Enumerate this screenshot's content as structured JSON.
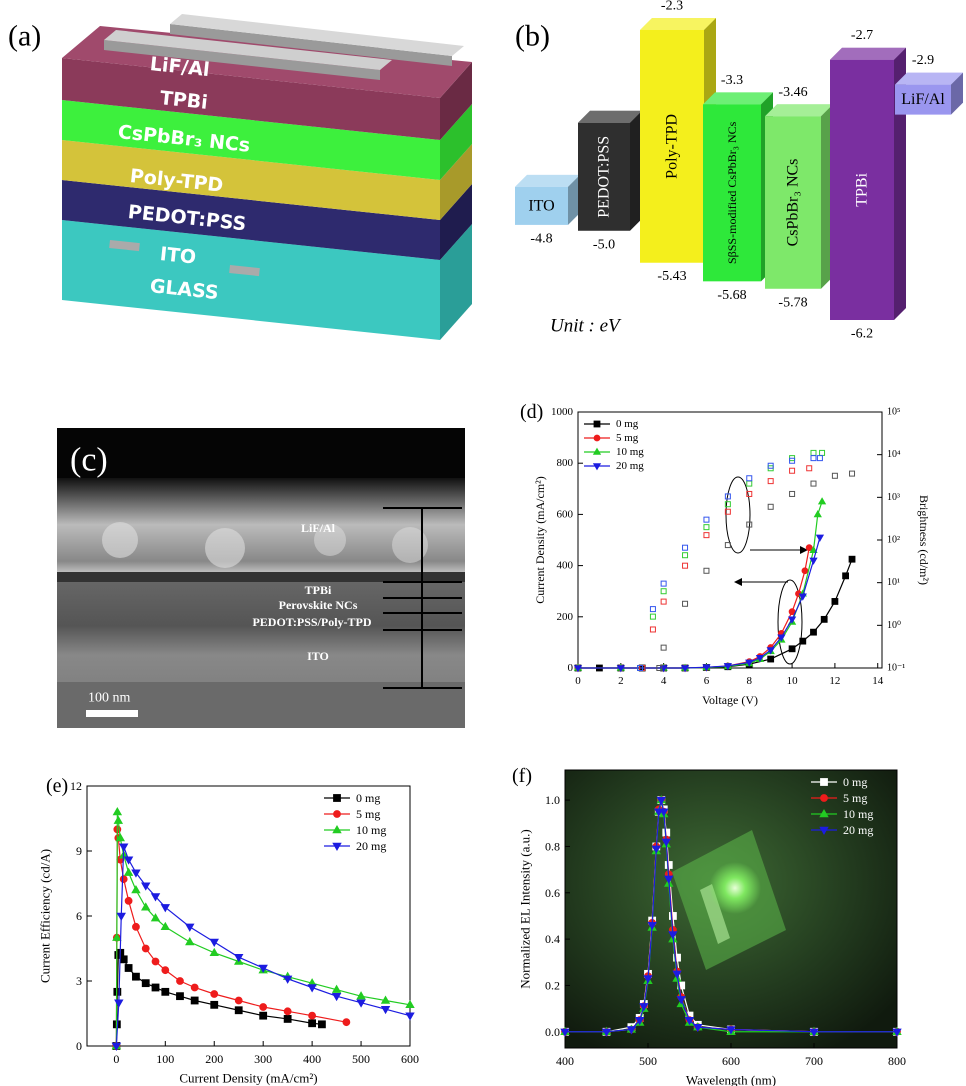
{
  "figure": {
    "panel_labels": [
      "(a)",
      "(b)",
      "(c)",
      "(d)",
      "(e)",
      "(f)"
    ]
  },
  "device_stack": {
    "layers": [
      "LiF/Al",
      "TPBi",
      "CsPbBr₃ NCs",
      "Poly-TPD",
      "PEDOT:PSS",
      "ITO",
      "GLASS"
    ]
  },
  "sem_image": {
    "labels": [
      "LiF/Al",
      "TPBi",
      "Perovskite NCs",
      "PEDOT:PSS/Poly-TPD",
      "ITO"
    ],
    "scale_bar": "100 nm"
  },
  "chart_data": [
    {
      "type": "energy",
      "unit": "Unit : eV",
      "categories": [
        "ITO",
        "PEDOT:PSS",
        "Poly-TPD",
        "SβSS-modified CsPbBr₃ NCs",
        "CsPbBr₃ NCs",
        "TPBi",
        "LiF/Al"
      ],
      "lumo": [
        null,
        null,
        -2.3,
        -3.3,
        -3.46,
        -2.7,
        -2.9
      ],
      "homo": [
        -4.8,
        {
          "value": -5,
          "label": "-5.0"
        },
        -5.43,
        -5.68,
        -5.78,
        -6.2,
        null
      ],
      "colors": [
        "#9fd0ee",
        "#2f2f2f",
        "#f4ef1c",
        "#2ee83a",
        "#7ee86a",
        "#7a2fa0",
        "#9a96ef"
      ],
      "label_colors": [
        "#000000",
        "#ffffff",
        "#000000",
        "#000000",
        "#000000",
        "#ffffff",
        "#000000"
      ]
    },
    {
      "type": "line",
      "xlabel": "Voltage (V)",
      "ylabel": "Current Density (mA/cm²)",
      "y2label": "Brightness (cd/m²)",
      "xlim": [
        0,
        14.2
      ],
      "xticks": [
        0,
        2,
        4,
        6,
        8,
        10,
        12,
        14
      ],
      "ylim": [
        0,
        1000
      ],
      "yticks": [
        0,
        200,
        400,
        600,
        800,
        1000
      ],
      "y2lim": [
        0.1,
        100000
      ],
      "y2log": true,
      "y2ticks": [
        {
          "value": 0.1,
          "label": "10⁻¹"
        },
        {
          "value": 1,
          "label": "10⁰"
        },
        {
          "value": 10,
          "label": "10¹"
        },
        {
          "value": 100,
          "label": "10²"
        },
        {
          "value": 1000,
          "label": "10³"
        },
        {
          "value": 10000,
          "label": "10⁴"
        },
        {
          "value": 100000,
          "label": "10⁵"
        }
      ],
      "legend": "upper left",
      "series": [
        {
          "name": "0 mg",
          "color": "#000000",
          "marker": "square",
          "x": [
            0,
            1,
            2,
            3,
            4,
            5,
            6,
            7,
            8,
            9,
            10,
            10.5,
            11,
            11.5,
            12,
            12.5,
            12.8
          ],
          "values": [
            0,
            0,
            0,
            0,
            0,
            0,
            2,
            5,
            15,
            35,
            75,
            105,
            140,
            190,
            260,
            360,
            425
          ]
        },
        {
          "name": "5 mg",
          "color": "#ee1c1c",
          "marker": "circle",
          "x": [
            0,
            2,
            4,
            5,
            6,
            7,
            8,
            8.5,
            9,
            9.5,
            10,
            10.3,
            10.6,
            10.8
          ],
          "values": [
            0,
            0,
            0,
            0,
            2,
            8,
            25,
            45,
            80,
            135,
            220,
            290,
            380,
            470
          ]
        },
        {
          "name": "10 mg",
          "color": "#22cc22",
          "marker": "triangle",
          "x": [
            0,
            2,
            4,
            5,
            6,
            7,
            8,
            8.5,
            9,
            9.5,
            10,
            10.5,
            11,
            11.2,
            11.4
          ],
          "values": [
            0,
            0,
            0,
            0,
            2,
            6,
            18,
            35,
            65,
            110,
            180,
            290,
            460,
            600,
            650
          ]
        },
        {
          "name": "20 mg",
          "color": "#1c1ce0",
          "marker": "triangle-down",
          "x": [
            0,
            2,
            4,
            5,
            6,
            7,
            8,
            8.5,
            9,
            9.5,
            10,
            10.5,
            11,
            11.3
          ],
          "values": [
            0,
            0,
            0,
            0,
            3,
            8,
            22,
            40,
            70,
            120,
            190,
            280,
            420,
            510
          ]
        },
        {
          "color": "#555555",
          "marker": "square",
          "open": true,
          "axis": "y2",
          "x": [
            3.8,
            4,
            5,
            6,
            7,
            8,
            9,
            10,
            11,
            12,
            12.8
          ],
          "values": [
            0.1,
            0.3,
            3.2,
            19,
            76,
            230,
            600,
            1200,
            2100,
            3200,
            3600
          ]
        },
        {
          "color": "#ee3333",
          "marker": "square",
          "open": true,
          "axis": "y2",
          "x": [
            3,
            3.5,
            4,
            5,
            6,
            7,
            8,
            9,
            10,
            10.8
          ],
          "values": [
            0.1,
            0.8,
            3.6,
            25,
            130,
            460,
            1200,
            2400,
            4200,
            4800
          ]
        },
        {
          "color": "#33cc33",
          "marker": "square",
          "open": true,
          "axis": "y2",
          "x": [
            2.9,
            3.5,
            4,
            5,
            6,
            7,
            8,
            9,
            10,
            11,
            11.4
          ],
          "values": [
            0.1,
            1.6,
            6.3,
            44,
            200,
            690,
            2100,
            4800,
            8300,
            11000,
            11000
          ]
        },
        {
          "color": "#3355ee",
          "marker": "square",
          "open": true,
          "axis": "y2",
          "x": [
            2.9,
            3.5,
            4,
            5,
            6,
            7,
            8,
            9,
            10,
            11,
            11.3
          ],
          "values": [
            0.1,
            2.4,
            9.5,
            66,
            300,
            1050,
            2800,
            5500,
            7200,
            8300,
            8300
          ]
        }
      ]
    },
    {
      "type": "line",
      "xlabel": "Current Density (mA/cm²)",
      "ylabel": "Current Efficiency (cd/A)",
      "xlim": [
        -60,
        600
      ],
      "xticks": [
        0,
        100,
        200,
        300,
        400,
        500,
        600
      ],
      "ylim": [
        0,
        12
      ],
      "yticks": [
        0,
        3,
        6,
        9,
        12
      ],
      "legend": "upper right",
      "series": [
        {
          "name": "0 mg",
          "color": "#000000",
          "marker": "square",
          "x": [
            0,
            1,
            2,
            4,
            8,
            15,
            25,
            40,
            60,
            80,
            100,
            130,
            160,
            200,
            250,
            300,
            350,
            400,
            420
          ],
          "values": [
            0,
            1,
            2.5,
            4.2,
            4.3,
            4.0,
            3.6,
            3.2,
            2.9,
            2.7,
            2.5,
            2.3,
            2.1,
            1.9,
            1.65,
            1.4,
            1.25,
            1.05,
            1.0
          ]
        },
        {
          "name": "5 mg",
          "color": "#ee1c1c",
          "marker": "circle",
          "x": [
            0,
            1,
            2,
            4,
            8,
            15,
            25,
            40,
            60,
            80,
            100,
            130,
            160,
            200,
            250,
            300,
            350,
            400,
            470
          ],
          "values": [
            0,
            5,
            10,
            9.6,
            8.6,
            7.7,
            6.7,
            5.5,
            4.5,
            3.9,
            3.5,
            3.0,
            2.7,
            2.4,
            2.1,
            1.8,
            1.6,
            1.4,
            1.1
          ]
        },
        {
          "name": "10 mg",
          "color": "#22cc22",
          "marker": "triangle",
          "x": [
            0,
            1,
            2,
            4,
            8,
            15,
            25,
            40,
            60,
            80,
            100,
            150,
            200,
            250,
            300,
            350,
            400,
            450,
            500,
            550,
            600
          ],
          "values": [
            0,
            5,
            10.8,
            10.4,
            9.6,
            8.8,
            8.0,
            7.2,
            6.4,
            5.9,
            5.5,
            4.8,
            4.3,
            3.9,
            3.5,
            3.2,
            2.9,
            2.6,
            2.3,
            2.1,
            1.9
          ]
        },
        {
          "name": "20 mg",
          "color": "#1c1ce0",
          "marker": "triangle-down",
          "x": [
            0,
            5,
            10,
            15,
            25,
            40,
            60,
            80,
            100,
            150,
            200,
            250,
            300,
            350,
            400,
            450,
            500,
            550,
            600
          ],
          "values": [
            0,
            2,
            6,
            9.2,
            8.6,
            8.0,
            7.4,
            6.9,
            6.4,
            5.5,
            4.8,
            4.1,
            3.6,
            3.1,
            2.7,
            2.3,
            2.0,
            1.7,
            1.4
          ]
        }
      ]
    },
    {
      "type": "line",
      "xlabel": "Wavelength (nm)",
      "ylabel": "Normalized EL Intensity (a.u.)",
      "xlim": [
        400,
        800
      ],
      "xticks": [
        400,
        500,
        600,
        700,
        800
      ],
      "ylim": [
        -0.07,
        1.13
      ],
      "yticks": [
        {
          "value": 0,
          "label": "0.0"
        },
        0.2,
        0.4,
        0.6,
        0.8,
        {
          "value": 1,
          "label": "1.0"
        }
      ],
      "legend": "upper right",
      "legend_text_color": "#ffffff",
      "x": [
        400,
        450,
        480,
        490,
        495,
        500,
        505,
        510,
        513,
        516,
        519,
        522,
        525,
        530,
        535,
        540,
        550,
        560,
        600,
        700,
        800
      ],
      "series": [
        {
          "name": "0 mg",
          "color": "#ffffff",
          "marker": "square",
          "values": [
            0,
            0,
            0.02,
            0.06,
            0.12,
            0.25,
            0.48,
            0.8,
            0.95,
            1.0,
            0.96,
            0.86,
            0.72,
            0.5,
            0.32,
            0.2,
            0.07,
            0.03,
            0.01,
            0,
            0
          ]
        },
        {
          "name": "5 mg",
          "color": "#ee1c1c",
          "marker": "circle",
          "values": [
            0,
            0,
            0.01,
            0.05,
            0.11,
            0.24,
            0.47,
            0.8,
            0.96,
            1.0,
            0.95,
            0.83,
            0.68,
            0.44,
            0.26,
            0.15,
            0.05,
            0.02,
            0.01,
            0,
            0
          ]
        },
        {
          "name": "10 mg",
          "color": "#22cc22",
          "marker": "triangle",
          "values": [
            0,
            0,
            0.01,
            0.04,
            0.1,
            0.22,
            0.45,
            0.78,
            0.95,
            1.0,
            0.94,
            0.81,
            0.64,
            0.4,
            0.23,
            0.12,
            0.04,
            0.02,
            0,
            0,
            0
          ]
        },
        {
          "name": "20 mg",
          "color": "#1c1ce0",
          "marker": "triangle-down",
          "values": [
            0,
            0,
            0.01,
            0.05,
            0.11,
            0.23,
            0.46,
            0.79,
            0.95,
            1.0,
            0.95,
            0.82,
            0.66,
            0.42,
            0.25,
            0.14,
            0.05,
            0.02,
            0.01,
            0,
            0
          ]
        }
      ]
    }
  ]
}
